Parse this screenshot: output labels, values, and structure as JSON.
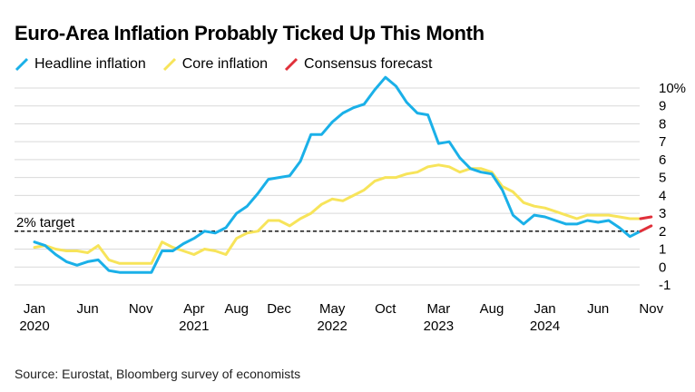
{
  "title": "Euro-Area Inflation Probably Ticked Up This Month",
  "source": "Source: Eurostat, Bloomberg survey of economists",
  "colors": {
    "headline": "#1ab0e8",
    "core": "#f7e45a",
    "consensus": "#e0303a",
    "grid": "#d9d9d9",
    "target": "#000000"
  },
  "legend": [
    {
      "label": "Headline inflation",
      "color": "#1ab0e8"
    },
    {
      "label": "Core inflation",
      "color": "#f7e45a"
    },
    {
      "label": "Consensus forecast",
      "color": "#e0303a"
    }
  ],
  "chart_data": {
    "type": "line",
    "title": "Euro-Area Inflation Probably Ticked Up This Month",
    "x_start": "2020-01",
    "x_frequency": "monthly",
    "xlim": [
      "2020-01",
      "2024-11"
    ],
    "ylim": [
      -1,
      10
    ],
    "y_ticks": [
      {
        "value": 10,
        "label": "10%"
      },
      {
        "value": 9,
        "label": "9"
      },
      {
        "value": 8,
        "label": "8"
      },
      {
        "value": 7,
        "label": "7"
      },
      {
        "value": 6,
        "label": "6"
      },
      {
        "value": 5,
        "label": "5"
      },
      {
        "value": 4,
        "label": "4"
      },
      {
        "value": 3,
        "label": "3"
      },
      {
        "value": 2,
        "label": "2"
      },
      {
        "value": 1,
        "label": "1"
      },
      {
        "value": 0,
        "label": "0"
      },
      {
        "value": -1,
        "label": "-1"
      }
    ],
    "x_ticks": [
      {
        "date": "2020-01",
        "month": "Jan",
        "year": "2020"
      },
      {
        "date": "2020-06",
        "month": "Jun",
        "year": ""
      },
      {
        "date": "2020-11",
        "month": "Nov",
        "year": ""
      },
      {
        "date": "2021-04",
        "month": "Apr",
        "year": "2021"
      },
      {
        "date": "2021-08",
        "month": "Aug",
        "year": ""
      },
      {
        "date": "2021-12",
        "month": "Dec",
        "year": ""
      },
      {
        "date": "2022-05",
        "month": "May",
        "year": "2022"
      },
      {
        "date": "2022-10",
        "month": "Oct",
        "year": ""
      },
      {
        "date": "2023-03",
        "month": "Mar",
        "year": "2023"
      },
      {
        "date": "2023-08",
        "month": "Aug",
        "year": ""
      },
      {
        "date": "2024-01",
        "month": "Jan",
        "year": "2024"
      },
      {
        "date": "2024-06",
        "month": "Jun",
        "year": ""
      },
      {
        "date": "2024-11",
        "month": "Nov",
        "year": ""
      }
    ],
    "grid": true,
    "legend_position": "top-left",
    "reference_line": {
      "value": 2,
      "label": "2% target",
      "style": "dashed"
    },
    "series": [
      {
        "name": "Headline inflation",
        "color": "#1ab0e8",
        "values": [
          1.4,
          1.2,
          0.7,
          0.3,
          0.1,
          0.3,
          0.4,
          -0.2,
          -0.3,
          -0.3,
          -0.3,
          -0.3,
          0.9,
          0.9,
          1.3,
          1.6,
          2.0,
          1.9,
          2.2,
          3.0,
          3.4,
          4.1,
          4.9,
          5.0,
          5.1,
          5.9,
          7.4,
          7.4,
          8.1,
          8.6,
          8.9,
          9.1,
          9.9,
          10.6,
          10.1,
          9.2,
          8.6,
          8.5,
          6.9,
          7.0,
          6.1,
          5.5,
          5.3,
          5.2,
          4.3,
          2.9,
          2.4,
          2.9,
          2.8,
          2.6,
          2.4,
          2.4,
          2.6,
          2.5,
          2.6,
          2.2,
          1.7,
          2.0
        ]
      },
      {
        "name": "Core inflation",
        "color": "#f7e45a",
        "values": [
          1.1,
          1.2,
          1.0,
          0.9,
          0.9,
          0.8,
          1.2,
          0.4,
          0.2,
          0.2,
          0.2,
          0.2,
          1.4,
          1.1,
          0.9,
          0.7,
          1.0,
          0.9,
          0.7,
          1.6,
          1.9,
          2.0,
          2.6,
          2.6,
          2.3,
          2.7,
          3.0,
          3.5,
          3.8,
          3.7,
          4.0,
          4.3,
          4.8,
          5.0,
          5.0,
          5.2,
          5.3,
          5.6,
          5.7,
          5.6,
          5.3,
          5.5,
          5.5,
          5.3,
          4.5,
          4.2,
          3.6,
          3.4,
          3.3,
          3.1,
          2.9,
          2.7,
          2.9,
          2.9,
          2.9,
          2.8,
          2.7,
          2.7
        ]
      },
      {
        "name": "Consensus forecast",
        "color": "#e0303a",
        "segments": [
          {
            "x": [
              "2024-10",
              "2024-11"
            ],
            "values": [
              2.0,
              2.3
            ]
          },
          {
            "x": [
              "2024-10",
              "2024-11"
            ],
            "values": [
              2.7,
              2.8
            ]
          }
        ]
      }
    ]
  }
}
